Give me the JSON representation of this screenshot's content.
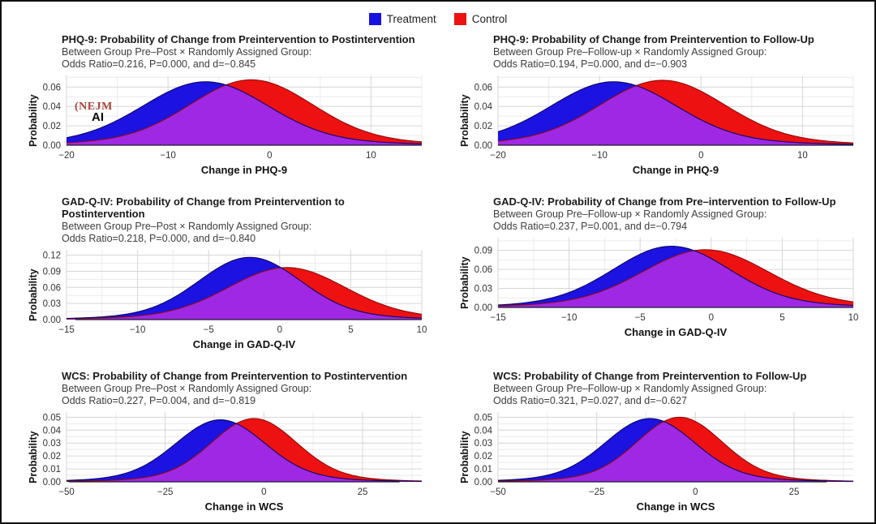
{
  "figure": {
    "background": "#ffffff",
    "border_color": "#111111",
    "colors": {
      "treatment_fill": "#1c12e2",
      "treatment_stroke": "#0a0666",
      "control_fill": "#ee1111",
      "control_stroke": "#8f0a0a",
      "overlap_fill": "#9f28e4",
      "grid_major": "#d6d6d6",
      "grid_minor": "#ebebeb",
      "baseline": "#1c1c2e"
    }
  },
  "legend": {
    "items": [
      {
        "label": "Treatment",
        "color": "#1611e3"
      },
      {
        "label": "Control",
        "color": "#ee1111"
      }
    ]
  },
  "watermark": {
    "brand": "(NEJM",
    "product": "AI",
    "color": "#a8433a"
  },
  "chart_data": [
    {
      "type": "area",
      "title": "PHQ-9: Probability of Change from Preintervention to Postintervention",
      "subtitle1": "Between Group Pre–Post × Randomly Assigned Group:",
      "subtitle2": "Odds Ratio=0.216, P=0.000, and d=−0.845",
      "xlabel": "Change in PHQ-9",
      "ylabel": "Probability",
      "xlim": [
        -20,
        15
      ],
      "ylim": [
        0,
        0.072
      ],
      "xticks": [
        -20,
        -10,
        0,
        10
      ],
      "yticks": [
        0.0,
        0.02,
        0.04,
        0.06
      ],
      "series": [
        {
          "name": "Treatment",
          "mean": -6.3,
          "sd": 6.0,
          "peak": 0.0655
        },
        {
          "name": "Control",
          "mean": -1.8,
          "sd": 5.9,
          "peak": 0.0675
        }
      ]
    },
    {
      "type": "area",
      "title": "PHQ-9: Probability of Change from Preintervention to Follow-Up",
      "subtitle1": "Between Group Pre–Follow-up × Randomly Assigned Group:",
      "subtitle2": "Odds Ratio=0.194, P=0.000, and d=−0.903",
      "xlabel": "Change in PHQ-9",
      "ylabel": "Probability",
      "xlim": [
        -20,
        15
      ],
      "ylim": [
        0,
        0.072
      ],
      "xticks": [
        -20,
        -10,
        0,
        10
      ],
      "yticks": [
        0.0,
        0.02,
        0.04,
        0.06
      ],
      "series": [
        {
          "name": "Treatment",
          "mean": -8.6,
          "sd": 6.0,
          "peak": 0.0655
        },
        {
          "name": "Control",
          "mean": -3.8,
          "sd": 6.0,
          "peak": 0.067
        }
      ]
    },
    {
      "type": "area",
      "title": "GAD-Q-IV: Probability of Change from Preintervention to Postintervention",
      "subtitle1": "Between Group Pre–Post × Randomly Assigned Group:",
      "subtitle2": "Odds Ratio=0.218, P=0.000, and d=−0.840",
      "xlabel": "Change in GAD-Q-IV",
      "ylabel": "Probability",
      "xlim": [
        -15,
        10
      ],
      "ylim": [
        0,
        0.13
      ],
      "xticks": [
        -15,
        -10,
        -5,
        0,
        5,
        10
      ],
      "yticks": [
        0.0,
        0.03,
        0.06,
        0.09,
        0.12
      ],
      "series": [
        {
          "name": "Treatment",
          "mean": -2.1,
          "sd": 3.5,
          "peak": 0.116
        },
        {
          "name": "Control",
          "mean": 0.5,
          "sd": 4.0,
          "peak": 0.097
        }
      ]
    },
    {
      "type": "area",
      "title": "GAD-Q-IV: Probability of Change from Pre–intervention to Follow-Up",
      "subtitle1": "Between Group Pre–Follow-up × Randomly Assigned Group:",
      "subtitle2": "Odds Ratio=0.237, P=0.001, and d=−0.794",
      "xlabel": "Change in GAD-Q-IV",
      "ylabel": "Probability",
      "xlim": [
        -15,
        10
      ],
      "ylim": [
        0,
        0.11
      ],
      "xticks": [
        -15,
        -10,
        -5,
        0,
        5,
        10
      ],
      "yticks": [
        0.0,
        0.03,
        0.06,
        0.09
      ],
      "series": [
        {
          "name": "Treatment",
          "mean": -2.8,
          "sd": 4.0,
          "peak": 0.0965
        },
        {
          "name": "Control",
          "mean": -0.4,
          "sd": 4.3,
          "peak": 0.091
        }
      ]
    },
    {
      "type": "area",
      "title": "WCS: Probability of Change from Preintervention to Postintervention",
      "subtitle1": "Between Group Pre–Post × Randomly Assigned Group:",
      "subtitle2": "Odds Ratio=0.227, P=0.004, and d=−0.819",
      "xlabel": "Change in WCS",
      "ylabel": "Probability",
      "xlim": [
        -50,
        40
      ],
      "ylim": [
        0,
        0.054
      ],
      "xticks": [
        -50,
        -25,
        0,
        25
      ],
      "yticks": [
        0.0,
        0.01,
        0.02,
        0.03,
        0.04,
        0.05
      ],
      "series": [
        {
          "name": "Treatment",
          "mean": -11.0,
          "sd": 11.0,
          "peak": 0.048
        },
        {
          "name": "Control",
          "mean": -2.5,
          "sd": 10.5,
          "peak": 0.049
        }
      ]
    },
    {
      "type": "area",
      "title": "WCS: Probability of Change from Preintervention to Follow-Up",
      "subtitle1": "Between Group Pre–Follow-up × Randomly Assigned Group:",
      "subtitle2": "Odds Ratio=0.321, P=0.027, and d=−0.627",
      "xlabel": "Change in WCS",
      "ylabel": "Probability",
      "xlim": [
        -50,
        40
      ],
      "ylim": [
        0,
        0.054
      ],
      "xticks": [
        -50,
        -25,
        0,
        25
      ],
      "yticks": [
        0.0,
        0.01,
        0.02,
        0.03,
        0.04,
        0.05
      ],
      "series": [
        {
          "name": "Treatment",
          "mean": -11.5,
          "sd": 11.0,
          "peak": 0.049
        },
        {
          "name": "Control",
          "mean": -4.0,
          "sd": 10.5,
          "peak": 0.05
        }
      ]
    }
  ]
}
